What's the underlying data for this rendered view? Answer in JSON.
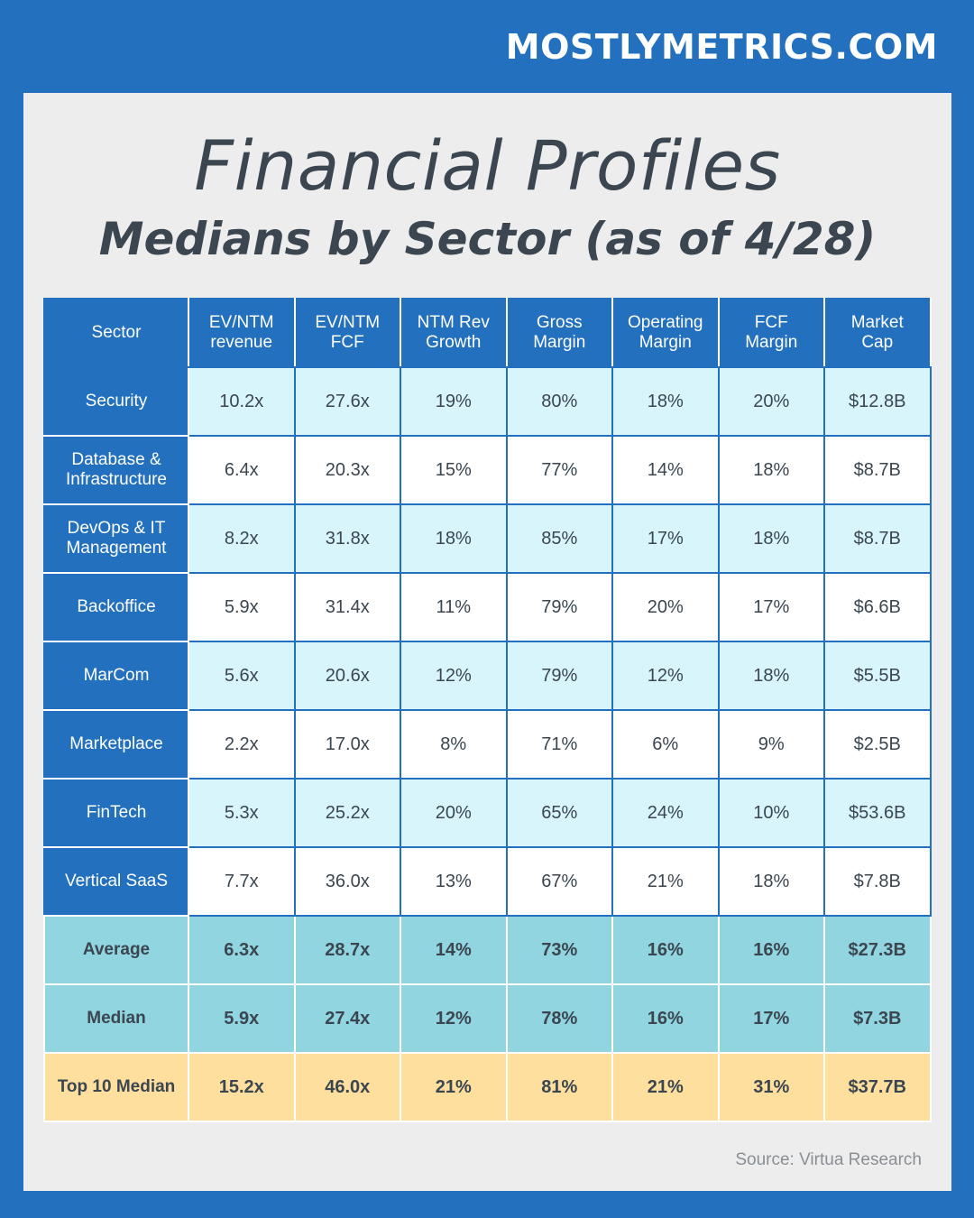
{
  "brand": "MOSTLYMETRICS.COM",
  "title": "Financial Profiles",
  "subtitle": "Medians by Sector (as of 4/28)",
  "source": "Source: Virtua Research",
  "colors": {
    "frame_blue": "#2370bf",
    "panel_gray": "#ededed",
    "row_light_cyan": "#d7f5fb",
    "row_white": "#ffffff",
    "summary_teal": "#90d5e0",
    "top10_yellow": "#fedf9e",
    "text_dark": "#3b4650"
  },
  "chart_data": {
    "type": "table",
    "title": "Financial Profiles",
    "subtitle": "Medians by Sector (as of 4/28)",
    "columns": [
      [
        "Sector"
      ],
      [
        "EV/NTM",
        "revenue"
      ],
      [
        "EV/NTM",
        "FCF"
      ],
      [
        "NTM Rev",
        "Growth"
      ],
      [
        "Gross",
        "Margin"
      ],
      [
        "Operating",
        "Margin"
      ],
      [
        "FCF",
        "Margin"
      ],
      [
        "Market",
        "Cap"
      ]
    ],
    "rows": [
      {
        "sector": [
          "Security"
        ],
        "values": [
          "10.2x",
          "27.6x",
          "19%",
          "80%",
          "18%",
          "20%",
          "$12.8B"
        ]
      },
      {
        "sector": [
          "Database &",
          "Infrastructure"
        ],
        "values": [
          "6.4x",
          "20.3x",
          "15%",
          "77%",
          "14%",
          "18%",
          "$8.7B"
        ]
      },
      {
        "sector": [
          "DevOps & IT",
          "Management"
        ],
        "values": [
          "8.2x",
          "31.8x",
          "18%",
          "85%",
          "17%",
          "18%",
          "$8.7B"
        ]
      },
      {
        "sector": [
          "Backoffice"
        ],
        "values": [
          "5.9x",
          "31.4x",
          "11%",
          "79%",
          "20%",
          "17%",
          "$6.6B"
        ]
      },
      {
        "sector": [
          "MarCom"
        ],
        "values": [
          "5.6x",
          "20.6x",
          "12%",
          "79%",
          "12%",
          "18%",
          "$5.5B"
        ]
      },
      {
        "sector": [
          "Marketplace"
        ],
        "values": [
          "2.2x",
          "17.0x",
          "8%",
          "71%",
          "6%",
          "9%",
          "$2.5B"
        ]
      },
      {
        "sector": [
          "FinTech"
        ],
        "values": [
          "5.3x",
          "25.2x",
          "20%",
          "65%",
          "24%",
          "10%",
          "$53.6B"
        ]
      },
      {
        "sector": [
          "Vertical SaaS"
        ],
        "values": [
          "7.7x",
          "36.0x",
          "13%",
          "67%",
          "21%",
          "18%",
          "$7.8B"
        ]
      }
    ],
    "summary_rows": [
      {
        "label": "Average",
        "values": [
          "6.3x",
          "28.7x",
          "14%",
          "73%",
          "16%",
          "16%",
          "$27.3B"
        ]
      },
      {
        "label": "Median",
        "values": [
          "5.9x",
          "27.4x",
          "12%",
          "78%",
          "16%",
          "17%",
          "$7.3B"
        ]
      }
    ],
    "highlight_row": {
      "label": "Top 10 Median",
      "values": [
        "15.2x",
        "46.0x",
        "21%",
        "81%",
        "21%",
        "31%",
        "$37.7B"
      ]
    }
  }
}
